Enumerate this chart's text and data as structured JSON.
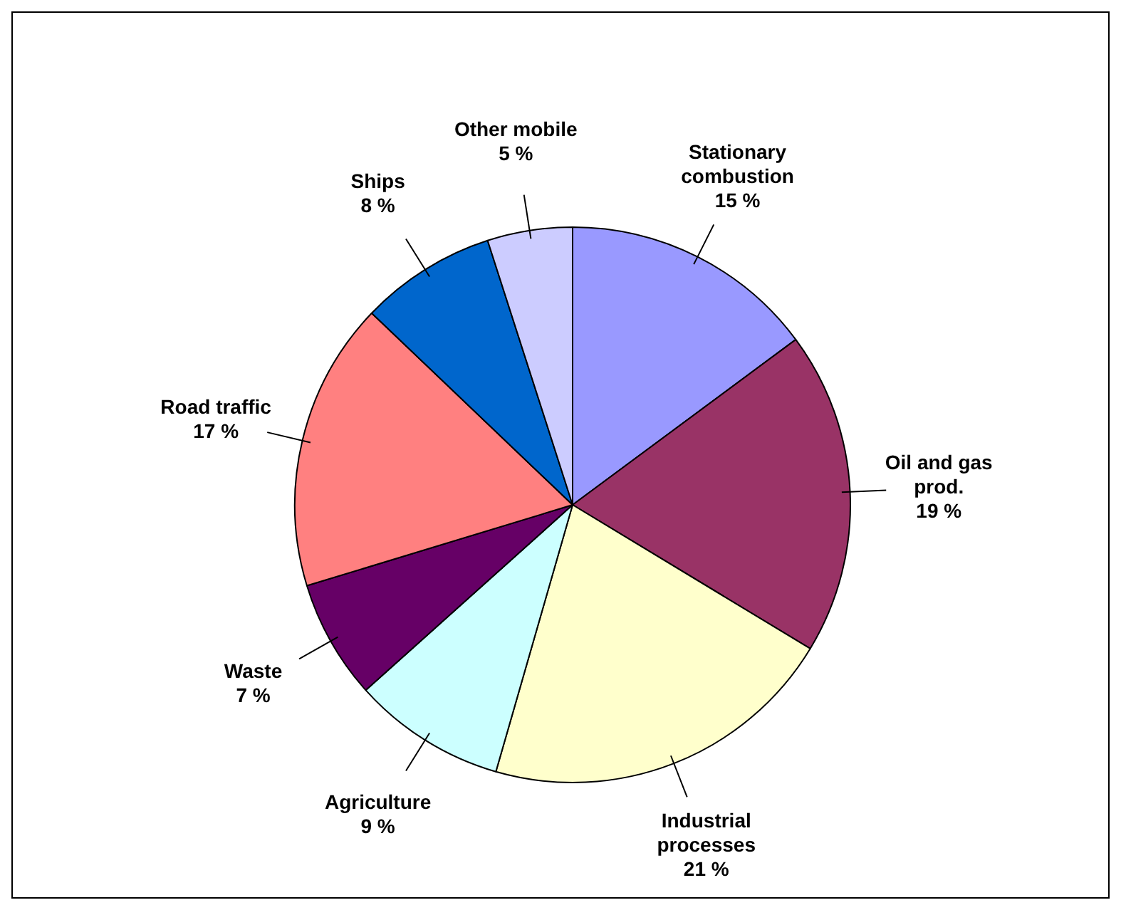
{
  "chart_data": {
    "type": "pie",
    "categories": [
      "Stationary combustion",
      "Oil and gas prod.",
      "Industrial processes",
      "Agriculture",
      "Waste",
      "Road traffic",
      "Ships",
      "Other mobile"
    ],
    "values": [
      15,
      19,
      21,
      9,
      7,
      17,
      8,
      5
    ],
    "value_labels": [
      "15 %",
      "19 %",
      "21 %",
      "9 %",
      "7 %",
      "17 %",
      "8 %",
      "5 %"
    ],
    "colors": [
      "#9999ff",
      "#993366",
      "#ffffcc",
      "#ccffff",
      "#660066",
      "#ff8080",
      "#0066cc",
      "#ccccff"
    ],
    "legend": false
  }
}
